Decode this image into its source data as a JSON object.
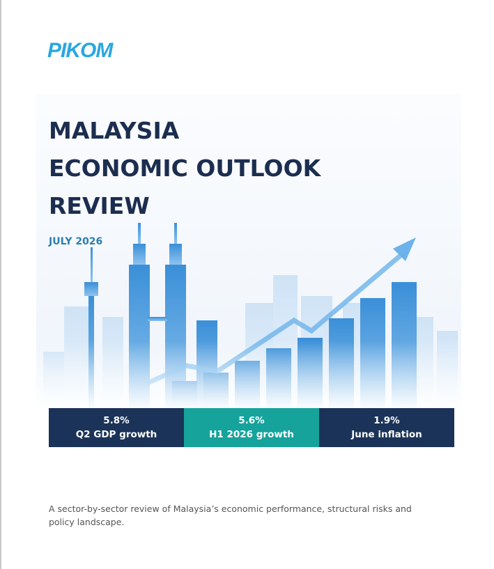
{
  "header": {
    "logo": "PIKOM"
  },
  "cover": {
    "title_lines": [
      "MALAYSIA",
      "ECONOMIC OUTLOOK",
      "REVIEW"
    ],
    "date": "JULY 2026"
  },
  "stats": [
    {
      "value": "5.8%",
      "label": "Q2 GDP growth"
    },
    {
      "value": "5.6%",
      "label": "H1 2026 growth"
    },
    {
      "value": "1.9%",
      "label": "June inflation"
    }
  ],
  "description": "A sector-by-sector review of Malaysia’s economic performance, structural risks and policy landscape."
}
